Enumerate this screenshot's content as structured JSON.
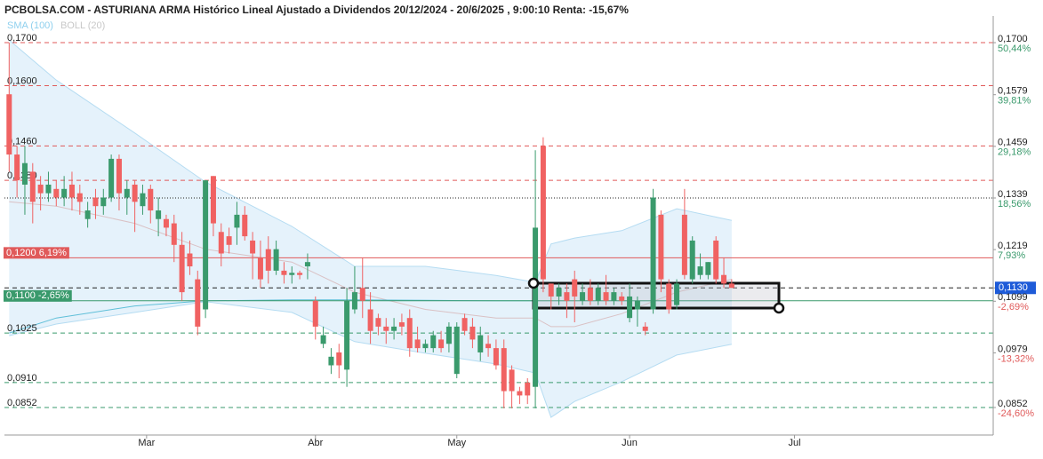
{
  "chart_data": {
    "type": "candlestick",
    "title": "PCBOLSA.COM - ASTURIANA ARMA Histórico Lineal Ajustado a Dividendos 20/12/2024 - 20/6/2025 , 9:00:10 Renta: -15,67%",
    "indicators": [
      {
        "name": "SMA (100)",
        "color": "#8fd0ee"
      },
      {
        "name": "BOLL (20)",
        "color": "#c8c8c8"
      }
    ],
    "up_color": "#3a9a6c",
    "down_color": "#f06262",
    "xlim": [
      -0.6,
      125.3
    ],
    "xticks": [
      {
        "value": 17.5,
        "label": "Mar"
      },
      {
        "value": 39,
        "label": "Abr"
      },
      {
        "value": 57,
        "label": "May"
      },
      {
        "value": 79,
        "label": "Jun"
      },
      {
        "value": 100,
        "label": "Jul"
      }
    ],
    "ylim": [
      0.0788,
      0.1762
    ],
    "candles": {
      "open": [
        0.158,
        0.144,
        0.137,
        0.14,
        0.137,
        0.135,
        0.136,
        0.134,
        0.137,
        0.135,
        0.129,
        0.134,
        0.132,
        0.134,
        0.143,
        0.134,
        0.137,
        0.132,
        0.136,
        0.129,
        0.129,
        0.128,
        0.123,
        0.121,
        0.115,
        0.108,
        0.139,
        0.126,
        0.125,
        0.127,
        0.13,
        0.124,
        0.12,
        0.122,
        0.117,
        0.117,
        0.116,
        0.1165,
        0.118,
        0.11,
        0.1,
        0.095,
        0.098,
        0.094,
        0.108,
        0.113,
        0.108,
        0.106,
        0.104,
        0.103,
        0.105,
        0.106,
        0.101,
        0.099,
        0.099,
        0.101,
        0.1,
        0.093,
        0.106,
        0.104,
        0.098,
        0.1,
        0.099,
        0.099,
        0.094,
        0.089,
        0.091,
        0.09,
        0.146,
        0.114,
        0.111,
        0.112,
        0.115,
        0.11,
        0.113,
        0.11,
        0.112,
        0.11,
        0.111,
        0.106,
        0.108,
        0.104,
        0.108,
        0.13,
        0.114,
        0.109,
        0.13,
        0.115,
        0.116,
        0.116,
        0.124,
        0.116,
        0.114
      ],
      "high": [
        0.17,
        0.146,
        0.146,
        0.142,
        0.139,
        0.14,
        0.138,
        0.139,
        0.14,
        0.137,
        0.133,
        0.136,
        0.136,
        0.144,
        0.144,
        0.138,
        0.138,
        0.137,
        0.137,
        0.134,
        0.13,
        0.13,
        0.126,
        0.124,
        0.117,
        0.138,
        0.139,
        0.128,
        0.127,
        0.133,
        0.132,
        0.126,
        0.124,
        0.125,
        0.124,
        0.119,
        0.118,
        0.117,
        0.121,
        0.111,
        0.104,
        0.099,
        0.1,
        0.113,
        0.118,
        0.12,
        0.112,
        0.107,
        0.106,
        0.106,
        0.107,
        0.108,
        0.104,
        0.101,
        0.103,
        0.103,
        0.105,
        0.105,
        0.107,
        0.106,
        0.104,
        0.102,
        0.101,
        0.101,
        0.095,
        0.09,
        0.092,
        0.145,
        0.148,
        0.114,
        0.114,
        0.114,
        0.117,
        0.114,
        0.115,
        0.114,
        0.116,
        0.113,
        0.112,
        0.114,
        0.111,
        0.105,
        0.136,
        0.131,
        0.115,
        0.115,
        0.136,
        0.125,
        0.121,
        0.119,
        0.125,
        0.12,
        0.115
      ],
      "low": [
        0.14,
        0.134,
        0.13,
        0.128,
        0.131,
        0.133,
        0.132,
        0.132,
        0.131,
        0.13,
        0.127,
        0.129,
        0.13,
        0.133,
        0.131,
        0.13,
        0.126,
        0.13,
        0.128,
        0.125,
        0.125,
        0.119,
        0.11,
        0.116,
        0.102,
        0.106,
        0.125,
        0.118,
        0.121,
        0.123,
        0.124,
        0.115,
        0.113,
        0.114,
        0.116,
        0.114,
        0.114,
        0.115,
        0.115,
        0.101,
        0.099,
        0.093,
        0.092,
        0.09,
        0.107,
        0.106,
        0.1,
        0.102,
        0.1,
        0.101,
        0.102,
        0.097,
        0.098,
        0.098,
        0.098,
        0.098,
        0.098,
        0.092,
        0.102,
        0.099,
        0.096,
        0.097,
        0.094,
        0.085,
        0.085,
        0.086,
        0.086,
        0.085,
        0.112,
        0.108,
        0.109,
        0.106,
        0.105,
        0.109,
        0.109,
        0.109,
        0.109,
        0.109,
        0.109,
        0.105,
        0.104,
        0.102,
        0.107,
        0.112,
        0.107,
        0.108,
        0.115,
        0.114,
        0.115,
        0.115,
        0.114,
        0.113,
        0.113
      ],
      "close": [
        0.144,
        0.138,
        0.142,
        0.133,
        0.135,
        0.137,
        0.134,
        0.136,
        0.134,
        0.133,
        0.131,
        0.132,
        0.134,
        0.143,
        0.135,
        0.136,
        0.133,
        0.135,
        0.131,
        0.131,
        0.127,
        0.123,
        0.112,
        0.118,
        0.104,
        0.138,
        0.128,
        0.121,
        0.123,
        0.13,
        0.125,
        0.121,
        0.115,
        0.117,
        0.122,
        0.116,
        0.1165,
        0.116,
        0.119,
        0.104,
        0.102,
        0.097,
        0.095,
        0.11,
        0.112,
        0.11,
        0.103,
        0.104,
        0.103,
        0.104,
        0.104,
        0.099,
        0.099,
        0.1,
        0.102,
        0.099,
        0.104,
        0.104,
        0.103,
        0.101,
        0.102,
        0.099,
        0.095,
        0.089,
        0.089,
        0.088,
        0.088,
        0.127,
        0.115,
        0.111,
        0.113,
        0.11,
        0.111,
        0.112,
        0.11,
        0.113,
        0.11,
        0.112,
        0.11,
        0.111,
        0.11,
        0.103,
        0.134,
        0.115,
        0.108,
        0.114,
        0.116,
        0.124,
        0.118,
        0.119,
        0.115,
        0.114,
        0.113
      ]
    },
    "bollinger": {
      "x": [
        0,
        6,
        16,
        25,
        36,
        44,
        53,
        62,
        67,
        69,
        72,
        78,
        85,
        92
      ],
      "upper": [
        0.1706,
        0.1613,
        0.149,
        0.1376,
        0.1273,
        0.118,
        0.118,
        0.1159,
        0.1143,
        0.1232,
        0.1246,
        0.1263,
        0.1314,
        0.1287
      ],
      "middle": [
        0.133,
        0.132,
        0.128,
        0.122,
        0.119,
        0.112,
        0.108,
        0.106,
        0.106,
        0.104,
        0.104,
        0.107,
        0.112,
        0.115
      ],
      "lower": [
        0.1019,
        0.1046,
        0.1073,
        0.1098,
        0.1073,
        0.1005,
        0.0978,
        0.0953,
        0.0932,
        0.0829,
        0.0866,
        0.0912,
        0.0974,
        0.0999
      ],
      "sma": [
        0.1025,
        0.106,
        0.1088,
        0.11,
        0.1102,
        0.1102,
        0.1101,
        0.11,
        0.11,
        0.11,
        0.11,
        0.11,
        0.11,
        0.11
      ]
    },
    "levels": [
      {
        "value": 0.17,
        "label": "0,1700",
        "color": "#e05a5a",
        "style": "dashed"
      },
      {
        "value": 0.16,
        "label": "0,1600",
        "color": "#e05a5a",
        "style": "dashed"
      },
      {
        "value": 0.146,
        "label": "0,1460",
        "color": "#e05a5a",
        "style": "dashed"
      },
      {
        "value": 0.138,
        "label": "0,1380",
        "color": "#e05a5a",
        "style": "dashed"
      },
      {
        "value": 0.1339,
        "color": "#222222",
        "style": "dotted"
      },
      {
        "value": 0.12,
        "label": "0,1200  6,19%",
        "color": "#e05a5a",
        "style": "solid",
        "boxed": true
      },
      {
        "value": 0.113,
        "color": "#222222",
        "style": "dashed"
      },
      {
        "value": 0.11,
        "label": "0,1100  -2,65%",
        "color": "#3a9a6c",
        "style": "solid",
        "boxed": true
      },
      {
        "value": 0.1025,
        "label": "0,1025",
        "color": "#3a9a6c",
        "style": "dashed"
      },
      {
        "value": 0.091,
        "label": "0,0910",
        "color": "#3a9a6c",
        "style": "dashed"
      },
      {
        "value": 0.0852,
        "label": "0,0852",
        "color": "#3a9a6c",
        "style": "dashed"
      }
    ],
    "right_ticks": [
      {
        "value": 0.17,
        "label": "0,1700",
        "change": "50,44%",
        "color": "#3a9a6c"
      },
      {
        "value": 0.1579,
        "label": "0,1579",
        "change": "39,81%",
        "color": "#3a9a6c"
      },
      {
        "value": 0.1459,
        "label": "0,1459",
        "change": "29,18%",
        "color": "#3a9a6c"
      },
      {
        "value": 0.1339,
        "label": "0,1339",
        "change": "18,56%",
        "color": "#3a9a6c"
      },
      {
        "value": 0.1219,
        "label": "0,1219",
        "change": "7,93%",
        "color": "#3a9a6c"
      },
      {
        "value": 0.113,
        "label": "0,1130",
        "highlight": "#1e5bd8"
      },
      {
        "value": 0.1099,
        "label": "0,1099",
        "change": "-2,69%",
        "color": "#e05a5a"
      },
      {
        "value": 0.0979,
        "label": "0,0979",
        "change": "-13,32%",
        "color": "#e05a5a"
      },
      {
        "value": 0.0852,
        "label": "0,0852",
        "change": "-24,60%",
        "color": "#e05a5a"
      }
    ]
  }
}
